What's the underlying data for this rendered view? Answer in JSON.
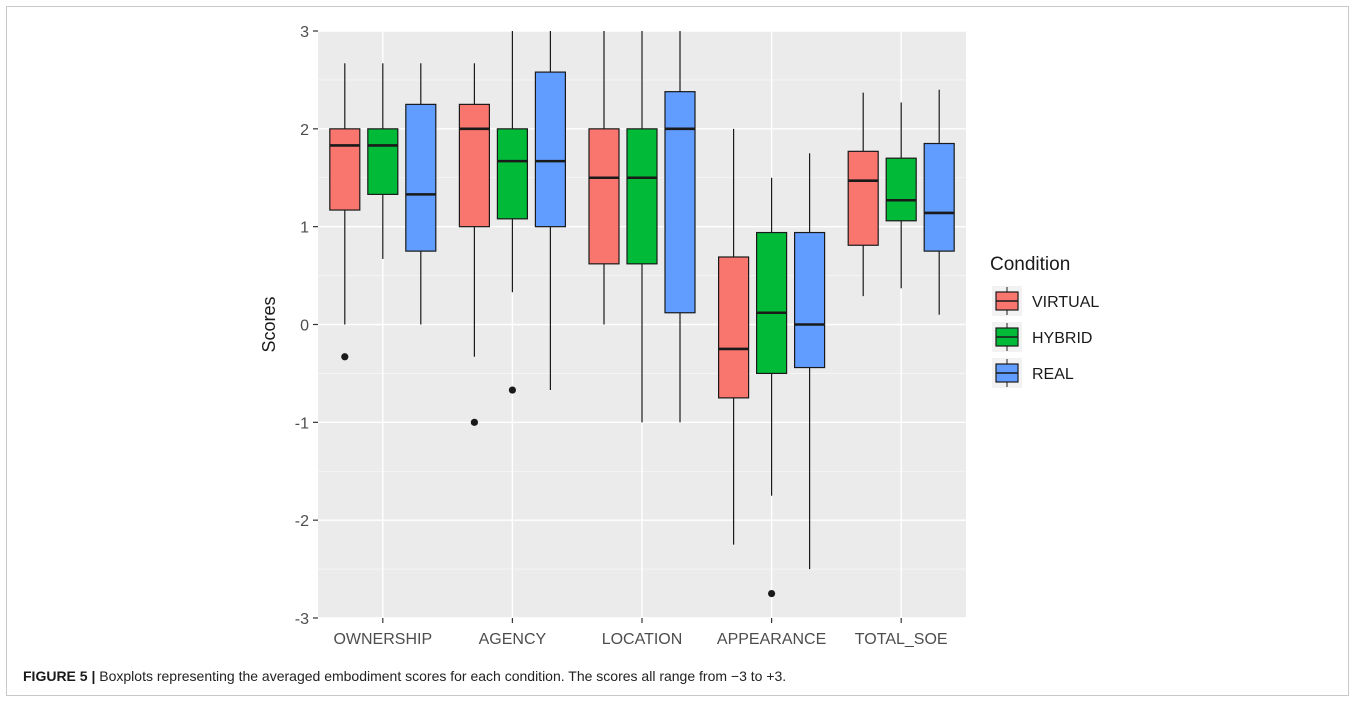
{
  "caption": {
    "label": "FIGURE 5 |",
    "text": " Boxplots representing the averaged embodiment scores for each condition. The scores all range from −3 to +3."
  },
  "colors": {
    "panel_bg": "#ebebeb",
    "grid_major": "#ffffff",
    "box_outline": "#1a1a1a"
  },
  "chart_data": {
    "type": "boxplot",
    "title": "",
    "xlabel": "",
    "ylabel": "Scores",
    "ylim": [
      -3,
      3
    ],
    "yticks": [
      -3,
      -2,
      -1,
      0,
      1,
      2,
      3
    ],
    "grid": true,
    "legend": {
      "title": "Condition",
      "placement": "right",
      "entries": [
        {
          "name": "VIRTUAL",
          "color": "#F8766D"
        },
        {
          "name": "HYBRID",
          "color": "#00BA38"
        },
        {
          "name": "REAL",
          "color": "#619CFF"
        }
      ]
    },
    "categories": [
      "OWNERSHIP",
      "AGENCY",
      "LOCATION",
      "APPEARANCE",
      "TOTAL_SOE"
    ],
    "series": [
      {
        "name": "VIRTUAL",
        "color": "#F8766D",
        "boxes": [
          {
            "min": 0.0,
            "q1": 1.17,
            "median": 1.83,
            "q3": 2.0,
            "max": 2.67,
            "outliers": [
              -0.33
            ]
          },
          {
            "min": -0.33,
            "q1": 1.0,
            "median": 2.0,
            "q3": 2.25,
            "max": 2.67,
            "outliers": [
              -1.0
            ]
          },
          {
            "min": 0.0,
            "q1": 0.62,
            "median": 1.5,
            "q3": 2.0,
            "max": 3.0,
            "outliers": []
          },
          {
            "min": -2.25,
            "q1": -0.75,
            "median": -0.25,
            "q3": 0.69,
            "max": 2.0,
            "outliers": []
          },
          {
            "min": 0.29,
            "q1": 0.81,
            "median": 1.47,
            "q3": 1.77,
            "max": 2.37,
            "outliers": []
          }
        ]
      },
      {
        "name": "HYBRID",
        "color": "#00BA38",
        "boxes": [
          {
            "min": 0.67,
            "q1": 1.33,
            "median": 1.83,
            "q3": 2.0,
            "max": 2.67,
            "outliers": []
          },
          {
            "min": 0.33,
            "q1": 1.08,
            "median": 1.67,
            "q3": 2.0,
            "max": 3.0,
            "outliers": [
              -0.67
            ]
          },
          {
            "min": -1.0,
            "q1": 0.62,
            "median": 1.5,
            "q3": 2.0,
            "max": 3.0,
            "outliers": []
          },
          {
            "min": -1.75,
            "q1": -0.5,
            "median": 0.12,
            "q3": 0.94,
            "max": 1.5,
            "outliers": [
              -2.75
            ]
          },
          {
            "min": 0.37,
            "q1": 1.06,
            "median": 1.27,
            "q3": 1.7,
            "max": 2.27,
            "outliers": []
          }
        ]
      },
      {
        "name": "REAL",
        "color": "#619CFF",
        "boxes": [
          {
            "min": 0.0,
            "q1": 0.75,
            "median": 1.33,
            "q3": 2.25,
            "max": 2.67,
            "outliers": []
          },
          {
            "min": -0.67,
            "q1": 1.0,
            "median": 1.67,
            "q3": 2.58,
            "max": 3.0,
            "outliers": []
          },
          {
            "min": -1.0,
            "q1": 0.12,
            "median": 2.0,
            "q3": 2.38,
            "max": 3.0,
            "outliers": []
          },
          {
            "min": -2.5,
            "q1": -0.44,
            "median": 0.0,
            "q3": 0.94,
            "max": 1.75,
            "outliers": []
          },
          {
            "min": 0.1,
            "q1": 0.75,
            "median": 1.14,
            "q3": 1.85,
            "max": 2.4,
            "outliers": []
          }
        ]
      }
    ]
  }
}
